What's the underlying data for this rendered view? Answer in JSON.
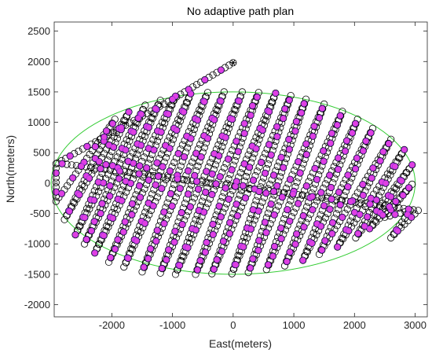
{
  "chart_data": {
    "type": "scatter",
    "title": "No adaptive path plan",
    "xlabel": "East(meters)",
    "ylabel": "North(meters)",
    "xlim": [
      -2950,
      3200
    ],
    "ylim": [
      -2200,
      2650
    ],
    "xticks": [
      -2000,
      -1000,
      0,
      1000,
      2000,
      3000
    ],
    "yticks": [
      -2000,
      -1500,
      -1000,
      -500,
      0,
      500,
      1000,
      1500,
      2000,
      2500
    ],
    "xtick_labels": [
      "-2000",
      "-1000",
      "0",
      "1000",
      "2000",
      "3000"
    ],
    "ytick_labels": [
      "-2000",
      "-1500",
      "-1000",
      "-500",
      "0",
      "500",
      "1000",
      "1500",
      "2000",
      "2500"
    ],
    "grid": false,
    "boundary": {
      "shape": "ellipse",
      "center": [
        0,
        0
      ],
      "semi_axes": [
        3000,
        1500
      ],
      "color": "#33cc33"
    },
    "path": {
      "marker": "circle",
      "color": "#000000",
      "sample_spacing_m": 80,
      "start": [
        -2920,
        320
      ],
      "end": [
        0,
        1980
      ],
      "end_marker": "asterisk",
      "vertices": [
        [
          -2920,
          320
        ],
        [
          -2920,
          -300
        ],
        [
          -1950,
          1050
        ],
        [
          -2780,
          -600
        ],
        [
          -1720,
          1170
        ],
        [
          -2600,
          -850
        ],
        [
          -1450,
          1280
        ],
        [
          -2450,
          -1000
        ],
        [
          -1200,
          1360
        ],
        [
          -2280,
          -1150
        ],
        [
          -950,
          1430
        ],
        [
          -2050,
          -1300
        ],
        [
          -700,
          1470
        ],
        [
          -1800,
          -1380
        ],
        [
          -420,
          1490
        ],
        [
          -1500,
          -1460
        ],
        [
          -150,
          1500
        ],
        [
          -1200,
          -1480
        ],
        [
          150,
          1500
        ],
        [
          -950,
          -1500
        ],
        [
          420,
          1490
        ],
        [
          -620,
          -1500
        ],
        [
          700,
          1480
        ],
        [
          -350,
          -1490
        ],
        [
          950,
          1440
        ],
        [
          -20,
          -1490
        ],
        [
          1200,
          1380
        ],
        [
          250,
          -1470
        ],
        [
          1500,
          1300
        ],
        [
          550,
          -1420
        ],
        [
          1800,
          1180
        ],
        [
          850,
          -1360
        ],
        [
          2050,
          1050
        ],
        [
          1150,
          -1270
        ],
        [
          2300,
          900
        ],
        [
          1420,
          -1170
        ],
        [
          2600,
          720
        ],
        [
          1720,
          -1050
        ],
        [
          2820,
          550
        ],
        [
          2020,
          -900
        ],
        [
          2950,
          300
        ],
        [
          2250,
          -750
        ],
        [
          2950,
          -20
        ],
        [
          2500,
          -560
        ],
        [
          2920,
          -450
        ],
        [
          2600,
          -900
        ],
        [
          3050,
          -450
        ],
        [
          -2900,
          330
        ],
        [
          -1000,
          1380
        ],
        [
          0,
          1980
        ]
      ]
    },
    "highlighted_points": {
      "marker": "circle-filled",
      "fill_color": "#e040e0",
      "edge_color": "#8a2be2",
      "every_nth_sample": 4
    }
  }
}
